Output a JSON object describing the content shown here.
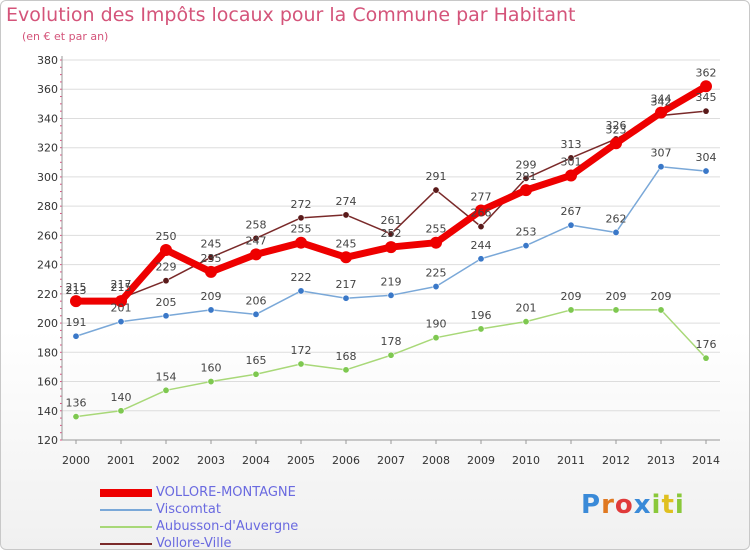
{
  "header": {
    "title": "Evolution des Impôts locaux pour la Commune par Habitant",
    "subtitle": "(en € et par an)"
  },
  "colors": {
    "title": "#d4547a",
    "grid": "#dddddd",
    "legend_text": "#6a6ae0"
  },
  "chart_data": {
    "type": "line",
    "title": "Evolution des Impôts locaux pour la Commune par Habitant",
    "subtitle": "(en € et par an)",
    "xlabel": "",
    "ylabel": "",
    "categories": [
      "2000",
      "2001",
      "2002",
      "2003",
      "2004",
      "2005",
      "2006",
      "2007",
      "2008",
      "2009",
      "2010",
      "2011",
      "2012",
      "2013",
      "2014"
    ],
    "ylim": [
      120,
      380
    ],
    "yticks": [
      120,
      140,
      160,
      180,
      200,
      220,
      240,
      260,
      280,
      300,
      320,
      340,
      360,
      380
    ],
    "grid": true,
    "legend_position": "bottom-left",
    "series": [
      {
        "name": "Vollore-Ville",
        "color": "#7a2a2a",
        "marker": "#5a1a1a",
        "values": [
          213,
          217,
          229,
          245,
          258,
          272,
          274,
          261,
          291,
          266,
          299,
          313,
          326,
          342,
          345
        ]
      },
      {
        "name": "Aubusson-d'Auvergne",
        "color": "#a8d878",
        "marker": "#7ec850",
        "values": [
          136,
          140,
          154,
          160,
          165,
          172,
          168,
          178,
          190,
          196,
          201,
          209,
          209,
          209,
          176
        ]
      },
      {
        "name": "Viscomtat",
        "color": "#7aa8d8",
        "marker": "#3a78c8",
        "values": [
          191,
          201,
          205,
          209,
          206,
          222,
          217,
          219,
          225,
          244,
          253,
          267,
          262,
          307,
          304
        ]
      },
      {
        "name": "VOLLORE-MONTAGNE",
        "color": "#ee0000",
        "marker": "#ee0000",
        "values": [
          215,
          215,
          250,
          235,
          247,
          255,
          245,
          252,
          255,
          277,
          291,
          301,
          323,
          344,
          362
        ]
      }
    ]
  },
  "legend": {
    "items": [
      {
        "label": "VOLLORE-MONTAGNE",
        "color": "#ee0000"
      },
      {
        "label": "Viscomtat",
        "color": "#7aa8d8"
      },
      {
        "label": "Aubusson-d'Auvergne",
        "color": "#a8d878"
      },
      {
        "label": "Vollore-Ville",
        "color": "#7a2a2a"
      }
    ]
  },
  "logo": {
    "letters": [
      {
        "ch": "P",
        "color": "#3a8ad8"
      },
      {
        "ch": "r",
        "color": "#e07820"
      },
      {
        "ch": "o",
        "color": "#e03a3a"
      },
      {
        "ch": "x",
        "color": "#3a8ad8"
      },
      {
        "ch": "i",
        "color": "#8ac83a"
      },
      {
        "ch": "t",
        "color": "#e0c020"
      },
      {
        "ch": "i",
        "color": "#8ac83a"
      }
    ]
  }
}
